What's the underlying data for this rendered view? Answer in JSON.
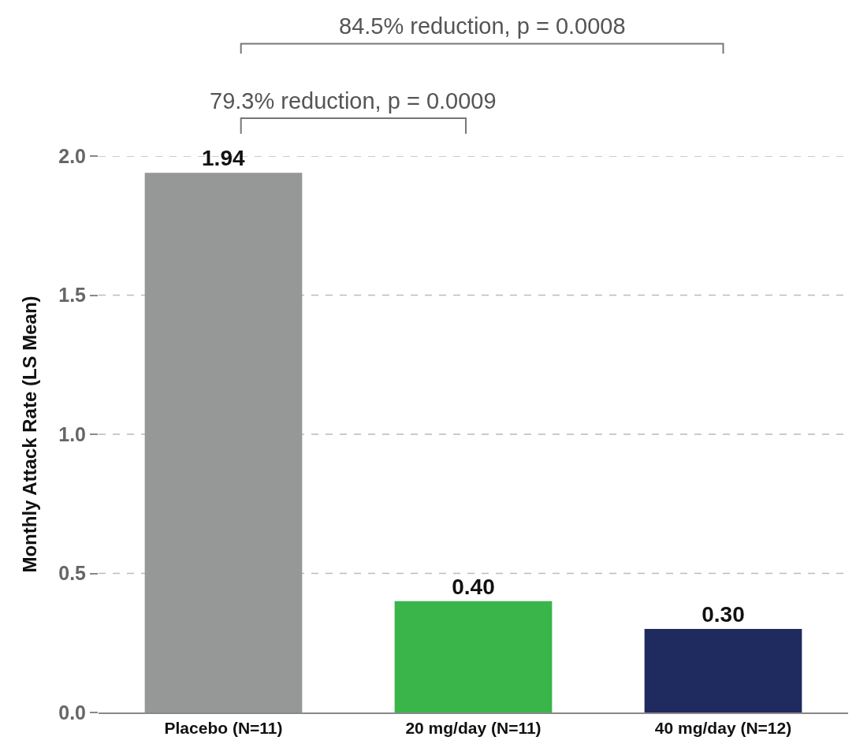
{
  "chart_data": {
    "type": "bar",
    "ylabel": "Monthly Attack Rate (LS Mean)",
    "categories": [
      "Placebo (N=11)",
      "20 mg/day (N=11)",
      "40 mg/day (N=12)"
    ],
    "values": [
      1.94,
      0.4,
      0.3
    ],
    "colors": [
      "#969897",
      "#39b54a",
      "#1f2a5e"
    ],
    "ylim": [
      0,
      2.0
    ],
    "yticks": [
      {
        "value": 0,
        "label": "0.0"
      },
      {
        "value": 0.5,
        "label": "0.5"
      },
      {
        "value": 1,
        "label": "1.0"
      },
      {
        "value": 1.5,
        "label": "1.5"
      },
      {
        "value": 2,
        "label": "2.0"
      }
    ],
    "grid": "y",
    "value_labels": [
      "1.94",
      "0.40",
      "0.30"
    ],
    "annotations": [
      "84.5% reduction, p = 0.0008",
      "79.3% reduction, p = 0.0009"
    ]
  }
}
